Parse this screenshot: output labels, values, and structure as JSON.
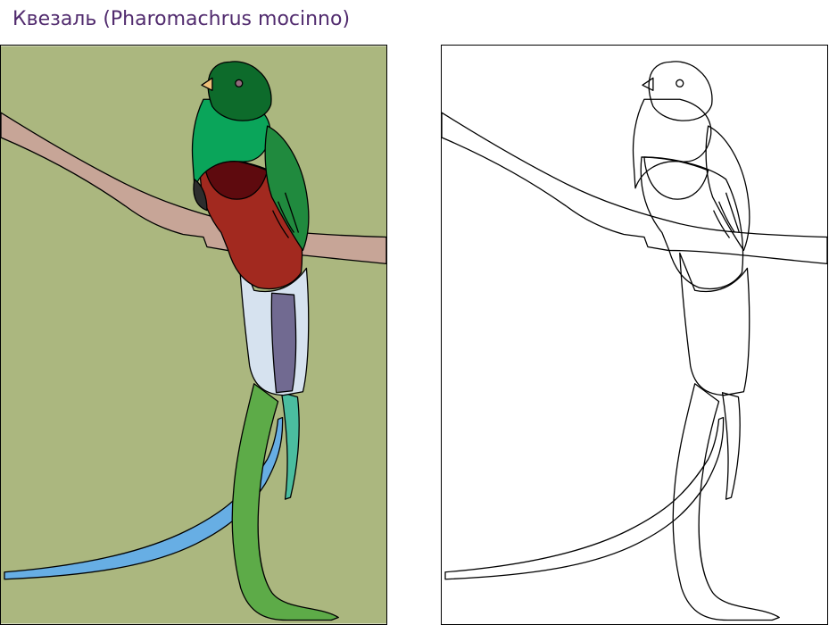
{
  "page": {
    "title": "Квезаль (Pharomachrus mocinno)",
    "title_color": "#512b6e"
  },
  "colored_illustration": {
    "subject": "quetzal-bird-on-branch",
    "colors": {
      "background": "#abb77f",
      "branch": "#c7a597",
      "head_green": "#0d6b2b",
      "body_green": "#0aa55a",
      "wing_green": "#208a3e",
      "breast_dark_red": "#5e0a0e",
      "belly_red": "#a2291f",
      "undertail_white": "#d6e2ef",
      "tail_purple": "#716a91",
      "tail_green": "#5dab48",
      "tail_teal": "#4bbd9f",
      "tail_blue": "#67aee4",
      "beak": "#f0c07a",
      "eye": "#916b7c",
      "dark_patch": "#2d2d2d",
      "outline": "#000000"
    }
  },
  "outline_illustration": {
    "subject": "quetzal-bird-on-branch-coloring-outline",
    "colors": {
      "background": "#ffffff",
      "outline": "#000000"
    }
  }
}
